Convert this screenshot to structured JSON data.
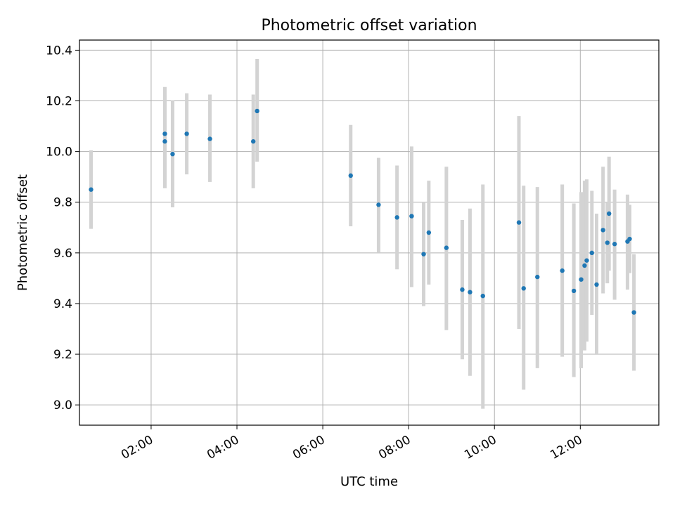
{
  "chart_data": {
    "type": "scatter",
    "title": "Photometric offset variation",
    "xlabel": "UTC time",
    "ylabel": "Photometric offset",
    "x_unit": "hours UTC",
    "xlim": [
      0.33,
      13.83
    ],
    "ylim": [
      8.92,
      10.44
    ],
    "x_ticks": [
      {
        "value": 2,
        "label": "02:00"
      },
      {
        "value": 4,
        "label": "04:00"
      },
      {
        "value": 6,
        "label": "06:00"
      },
      {
        "value": 8,
        "label": "08:00"
      },
      {
        "value": 10,
        "label": "10:00"
      },
      {
        "value": 12,
        "label": "12:00"
      }
    ],
    "y_ticks": [
      {
        "value": 9.0,
        "label": "9.0"
      },
      {
        "value": 9.2,
        "label": "9.2"
      },
      {
        "value": 9.4,
        "label": "9.4"
      },
      {
        "value": 9.6,
        "label": "9.6"
      },
      {
        "value": 9.8,
        "label": "9.8"
      },
      {
        "value": 10.0,
        "label": "10.0"
      },
      {
        "value": 10.2,
        "label": "10.2"
      },
      {
        "value": 10.4,
        "label": "10.4"
      }
    ],
    "grid": true,
    "colors": {
      "point": "#1f77b4",
      "errorbar": "#d3d3d3"
    },
    "series": [
      {
        "points": [
          {
            "x": 0.6,
            "y": 9.85,
            "low": 9.695,
            "high": 10.005
          },
          {
            "x": 2.32,
            "y": 10.04,
            "low": 9.855,
            "high": 10.225
          },
          {
            "x": 2.32,
            "y": 10.07,
            "low": 9.885,
            "high": 10.255
          },
          {
            "x": 2.5,
            "y": 9.99,
            "low": 9.78,
            "high": 10.2
          },
          {
            "x": 2.83,
            "y": 10.07,
            "low": 9.91,
            "high": 10.23
          },
          {
            "x": 3.37,
            "y": 10.05,
            "low": 9.88,
            "high": 10.225
          },
          {
            "x": 4.38,
            "y": 10.04,
            "low": 9.855,
            "high": 10.225
          },
          {
            "x": 4.47,
            "y": 10.16,
            "low": 9.96,
            "high": 10.365
          },
          {
            "x": 6.65,
            "y": 9.905,
            "low": 9.705,
            "high": 10.105
          },
          {
            "x": 7.3,
            "y": 9.79,
            "low": 9.6,
            "high": 9.975
          },
          {
            "x": 7.73,
            "y": 9.74,
            "low": 9.535,
            "high": 9.945
          },
          {
            "x": 8.07,
            "y": 9.745,
            "low": 9.465,
            "high": 10.02
          },
          {
            "x": 8.35,
            "y": 9.595,
            "low": 9.39,
            "high": 9.8
          },
          {
            "x": 8.47,
            "y": 9.68,
            "low": 9.475,
            "high": 9.885
          },
          {
            "x": 8.88,
            "y": 9.62,
            "low": 9.295,
            "high": 9.94
          },
          {
            "x": 9.25,
            "y": 9.455,
            "low": 9.18,
            "high": 9.73
          },
          {
            "x": 9.43,
            "y": 9.445,
            "low": 9.115,
            "high": 9.775
          },
          {
            "x": 9.73,
            "y": 9.43,
            "low": 8.985,
            "high": 9.87
          },
          {
            "x": 10.57,
            "y": 9.72,
            "low": 9.3,
            "high": 10.14
          },
          {
            "x": 10.68,
            "y": 9.46,
            "low": 9.06,
            "high": 9.865
          },
          {
            "x": 11.0,
            "y": 9.505,
            "low": 9.145,
            "high": 9.86
          },
          {
            "x": 11.58,
            "y": 9.53,
            "low": 9.19,
            "high": 9.87
          },
          {
            "x": 11.85,
            "y": 9.45,
            "low": 9.11,
            "high": 9.795
          },
          {
            "x": 12.02,
            "y": 9.495,
            "low": 9.145,
            "high": 9.84
          },
          {
            "x": 12.1,
            "y": 9.55,
            "low": 9.215,
            "high": 9.885
          },
          {
            "x": 12.15,
            "y": 9.57,
            "low": 9.25,
            "high": 9.89
          },
          {
            "x": 12.27,
            "y": 9.6,
            "low": 9.355,
            "high": 9.845
          },
          {
            "x": 12.38,
            "y": 9.475,
            "low": 9.2,
            "high": 9.755
          },
          {
            "x": 12.53,
            "y": 9.69,
            "low": 9.44,
            "high": 9.94
          },
          {
            "x": 12.63,
            "y": 9.64,
            "low": 9.48,
            "high": 9.8
          },
          {
            "x": 12.67,
            "y": 9.755,
            "low": 9.53,
            "high": 9.98
          },
          {
            "x": 12.8,
            "y": 9.635,
            "low": 9.415,
            "high": 9.85
          },
          {
            "x": 13.1,
            "y": 9.645,
            "low": 9.455,
            "high": 9.83
          },
          {
            "x": 13.15,
            "y": 9.655,
            "low": 9.52,
            "high": 9.79
          },
          {
            "x": 13.25,
            "y": 9.365,
            "low": 9.135,
            "high": 9.595
          }
        ]
      }
    ]
  }
}
